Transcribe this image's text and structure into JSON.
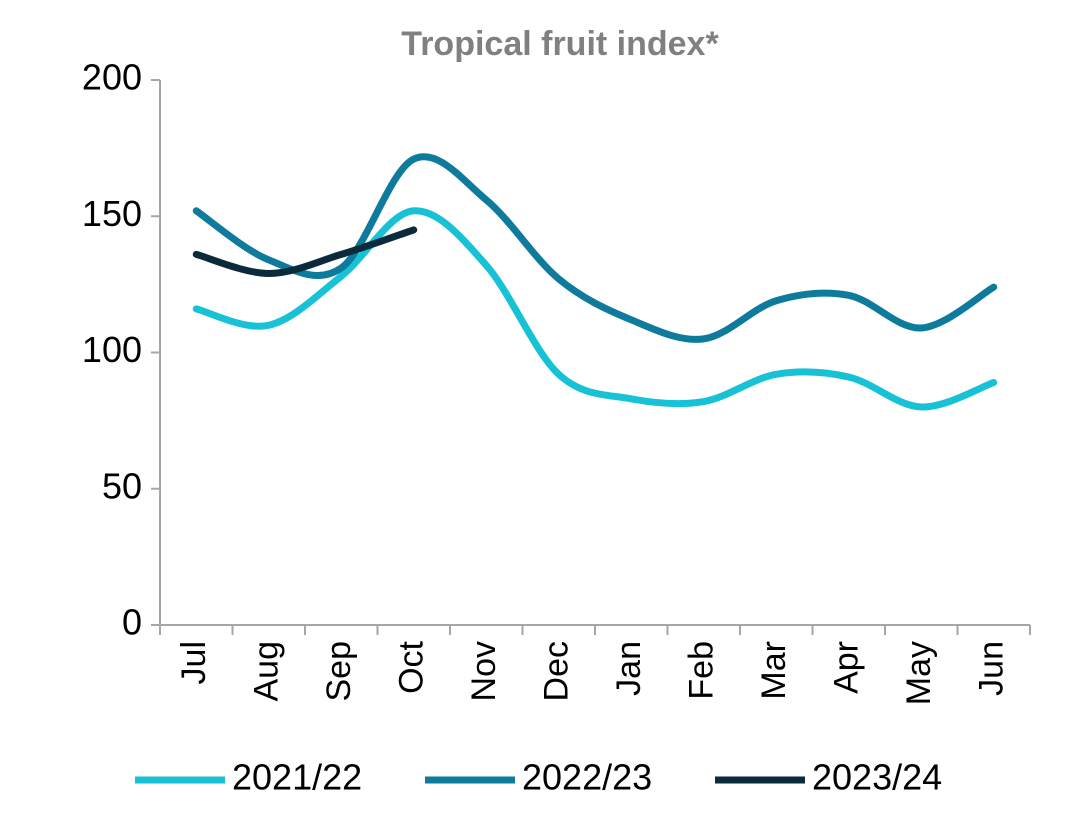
{
  "chart_data": {
    "type": "line",
    "title": "Tropical fruit index*",
    "categories": [
      "Jul",
      "Aug",
      "Sep",
      "Oct",
      "Nov",
      "Dec",
      "Jan",
      "Feb",
      "Mar",
      "Apr",
      "May",
      "Jun"
    ],
    "series": [
      {
        "name": "2021/22",
        "color": "#17c1d6",
        "values": [
          116,
          110,
          128,
          152,
          132,
          92,
          83,
          82,
          92,
          91,
          80,
          89
        ]
      },
      {
        "name": "2022/23",
        "color": "#0e7a9c",
        "values": [
          152,
          134,
          131,
          171,
          156,
          127,
          112,
          105,
          119,
          121,
          109,
          124
        ]
      },
      {
        "name": "2023/24",
        "color": "#0b2a3c",
        "values": [
          136,
          129,
          136,
          145,
          null,
          null,
          null,
          null,
          null,
          null,
          null,
          null
        ]
      }
    ],
    "ylim": [
      0,
      200
    ],
    "yticks": [
      0,
      50,
      100,
      150,
      200
    ],
    "grid": false,
    "smooth": true,
    "legend": "bottom"
  }
}
